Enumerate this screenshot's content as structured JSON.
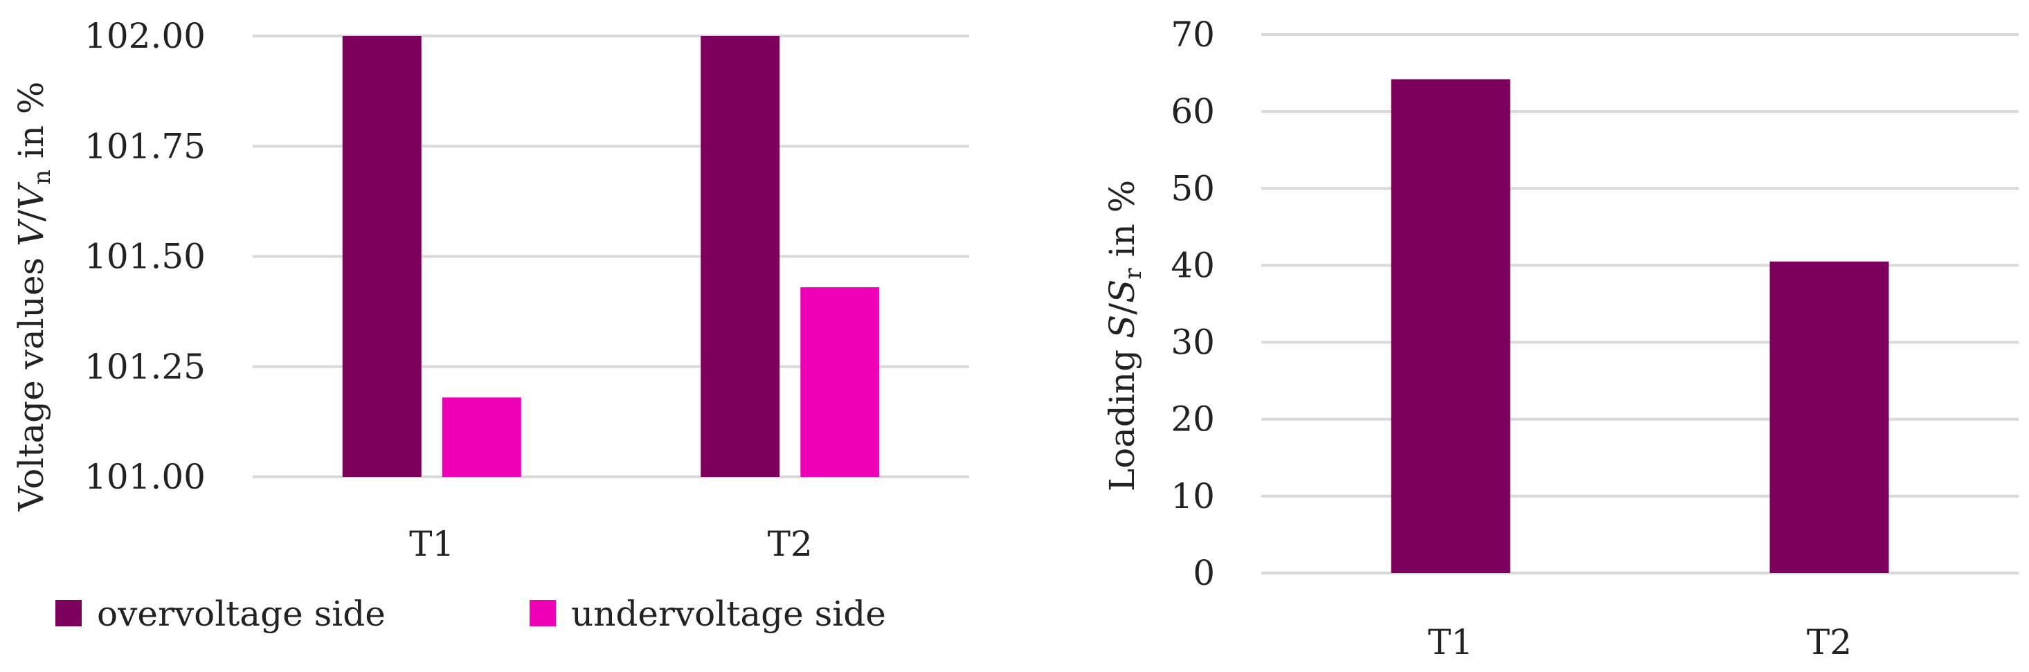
{
  "chart_data": [
    {
      "type": "bar",
      "categories": [
        "T1",
        "T2"
      ],
      "series": [
        {
          "name": "overvoltage side",
          "values": [
            102.0,
            102.0
          ]
        },
        {
          "name": "undervoltage side",
          "values": [
            101.18,
            101.43
          ]
        }
      ],
      "ylim": [
        101.0,
        102.0
      ],
      "yticks": [
        "101.00",
        "101.25",
        "101.50",
        "101.75",
        "102.00"
      ],
      "ylabel": {
        "prefix": "Voltage values ",
        "v": "V",
        "slash": "/",
        "vn": "V",
        "sub": "n",
        "suffix": " in %"
      },
      "grid": true,
      "legend_position": "bottom",
      "colors": [
        "#7c005c",
        "#ee00b6"
      ]
    },
    {
      "type": "bar",
      "categories": [
        "T1",
        "T2"
      ],
      "series": [
        {
          "values": [
            64.2,
            40.5
          ]
        }
      ],
      "ylim": [
        0,
        70
      ],
      "yticks": [
        "0",
        "10",
        "20",
        "30",
        "40",
        "50",
        "60",
        "70"
      ],
      "ylabel": {
        "prefix": "Loading ",
        "s": "S",
        "slash": "/",
        "sr": "S",
        "sub": "r",
        "suffix": " in %"
      },
      "grid": true,
      "colors": [
        "#7c005c"
      ]
    }
  ]
}
